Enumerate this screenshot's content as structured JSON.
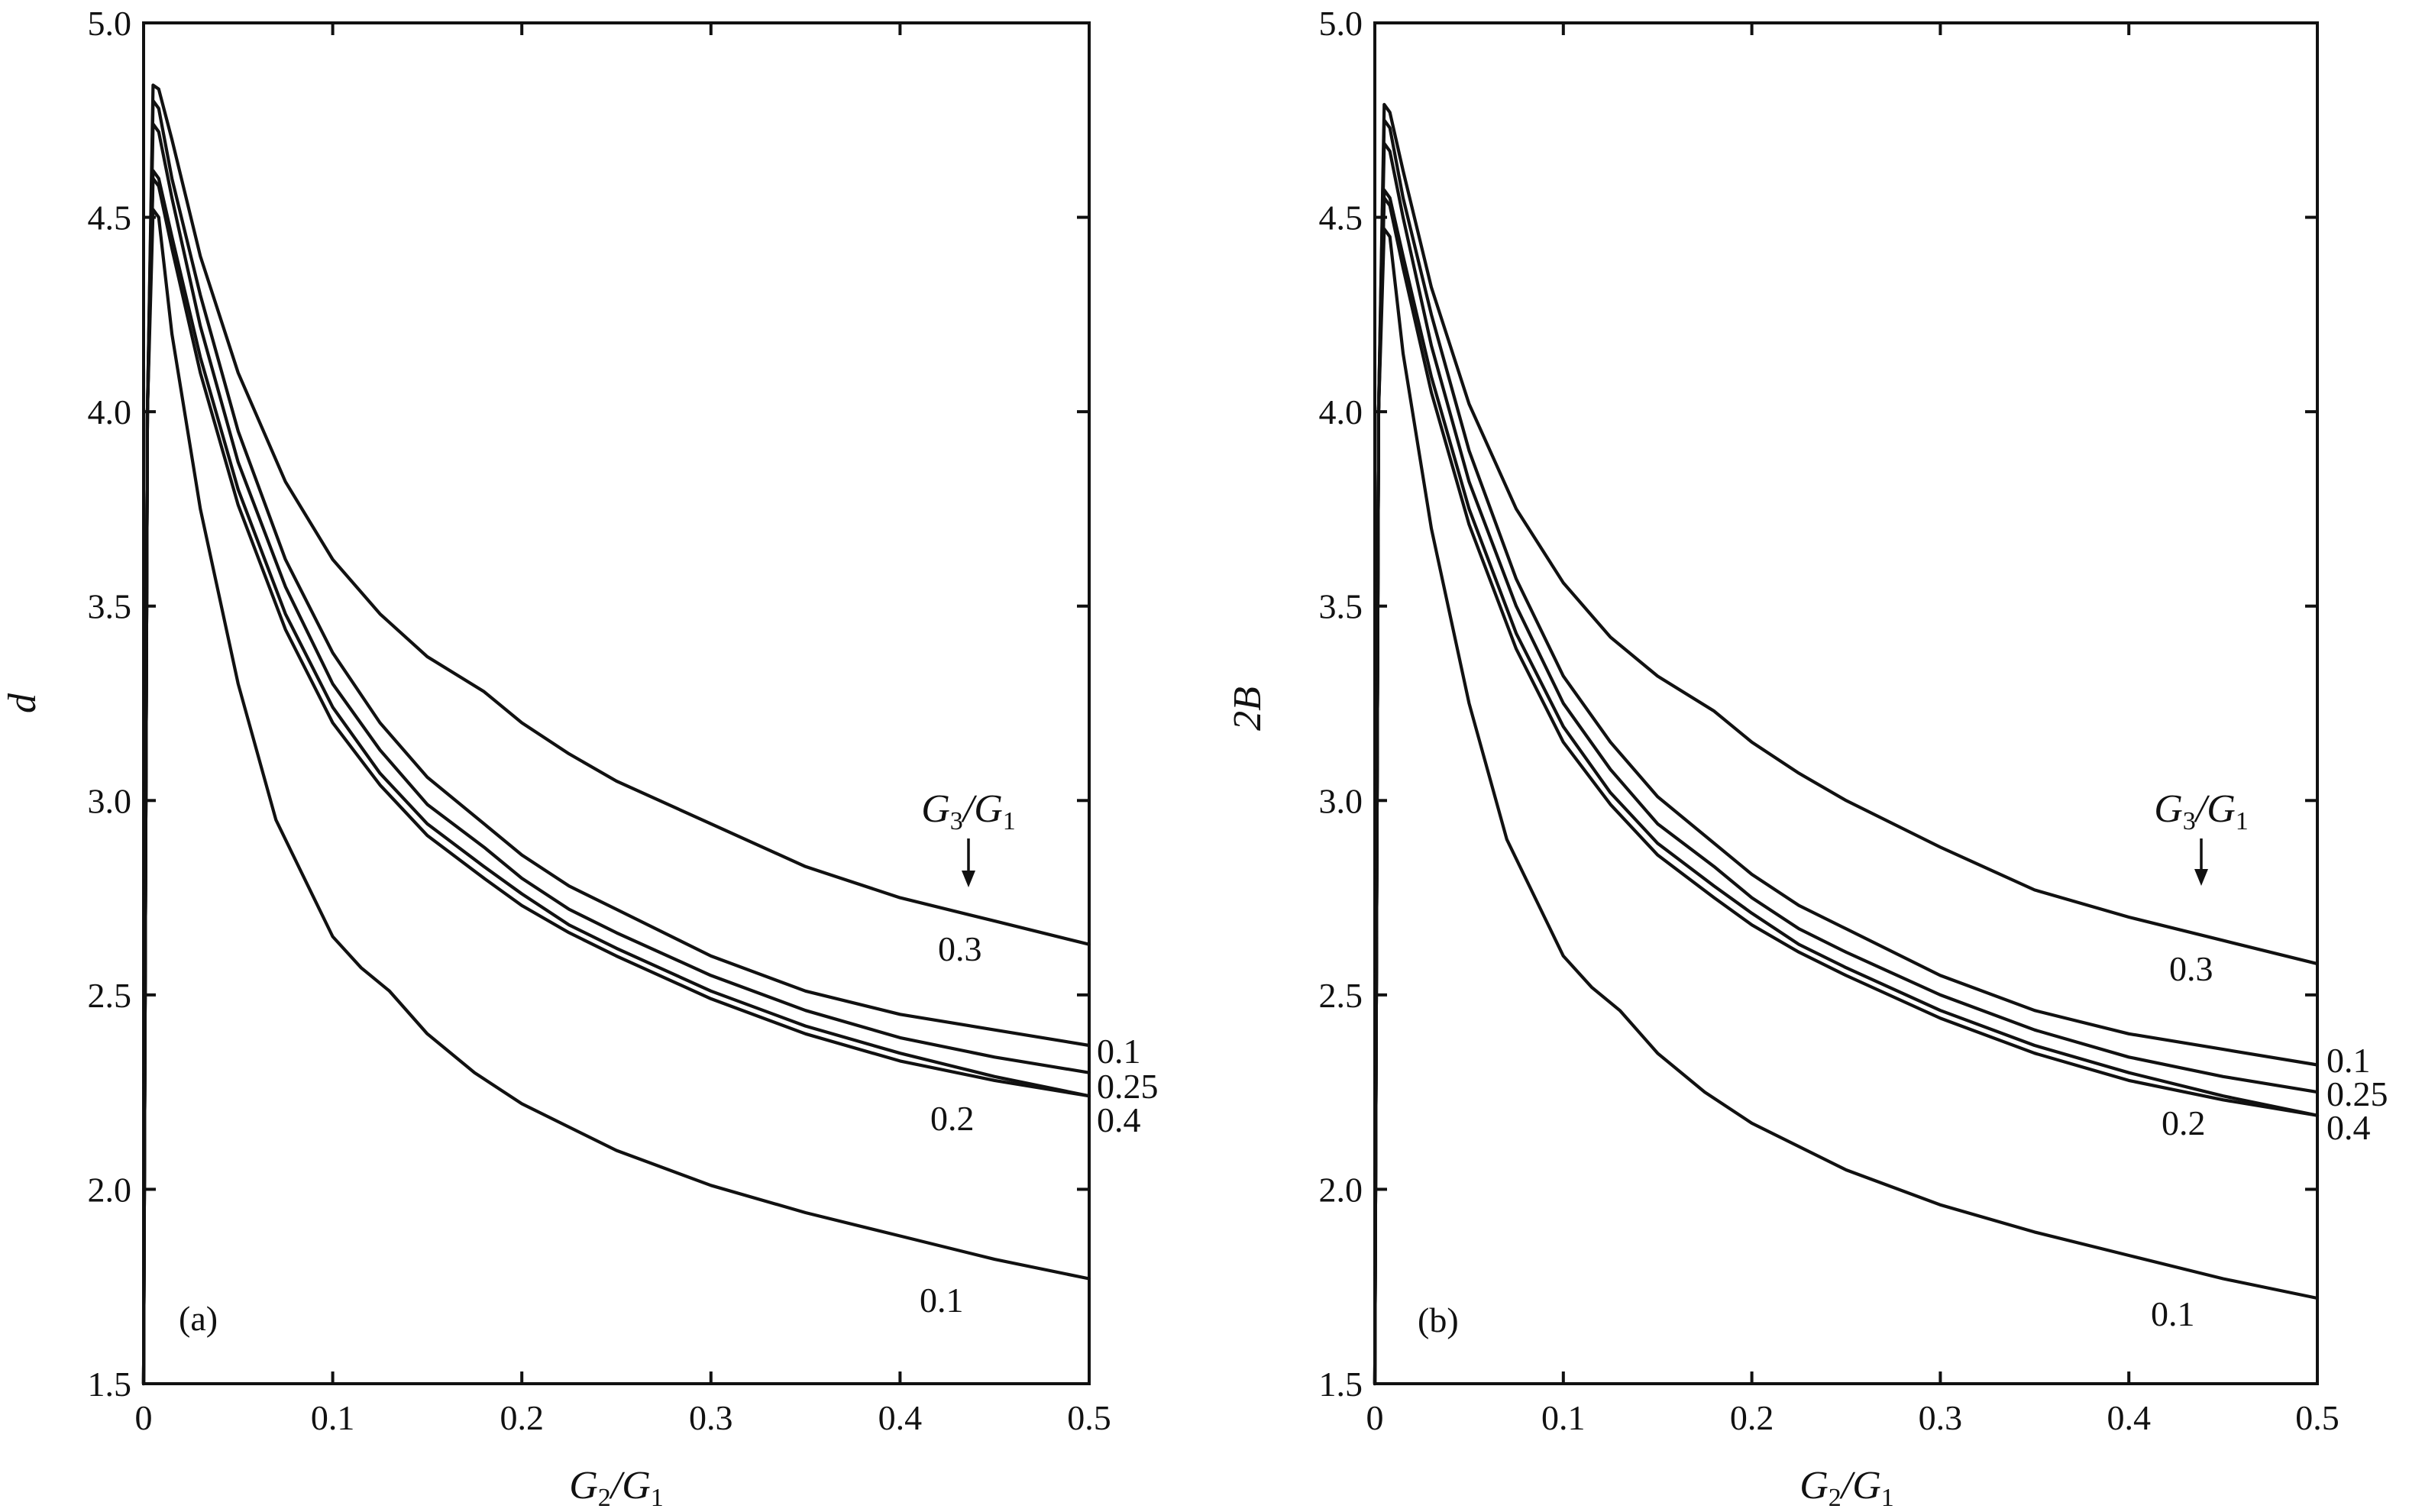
{
  "chart_data": [
    {
      "type": "line",
      "panel_tag": "(a)",
      "xlabel_main": "G",
      "xlabel_sub1": "2",
      "xlabel_sep": "/G",
      "xlabel_sub2": "1",
      "ylabel": "d",
      "xlim": [
        0,
        0.5
      ],
      "ylim": [
        1.5,
        5.0
      ],
      "xticks": [
        0,
        0.1,
        0.2,
        0.3,
        0.4,
        0.5
      ],
      "xtick_labels": [
        "0",
        "0.1",
        "0.2",
        "0.3",
        "0.4",
        "0.5"
      ],
      "yticks": [
        1.5,
        2.0,
        2.5,
        3.0,
        3.5,
        4.0,
        4.5,
        5.0
      ],
      "ytick_labels": [
        "1.5",
        "2.0",
        "2.5",
        "3.0",
        "3.5",
        "4.0",
        "4.5",
        "5.0"
      ],
      "legend_title_main": "G",
      "legend_title_sub1": "3",
      "legend_title_sep": "/G",
      "legend_title_sub2": "1",
      "series": [
        {
          "name": "0.3",
          "x": [
            0,
            0.002,
            0.005,
            0.008,
            0.015,
            0.03,
            0.05,
            0.075,
            0.1,
            0.125,
            0.15,
            0.18,
            0.2,
            0.225,
            0.25,
            0.3,
            0.35,
            0.4,
            0.45,
            0.5
          ],
          "values": [
            1.5,
            4.0,
            4.84,
            4.83,
            4.7,
            4.4,
            4.1,
            3.82,
            3.62,
            3.48,
            3.37,
            3.28,
            3.2,
            3.12,
            3.05,
            2.94,
            2.83,
            2.75,
            2.69,
            2.63
          ]
        },
        {
          "name": "0.1",
          "x": [
            0,
            0.002,
            0.005,
            0.008,
            0.015,
            0.03,
            0.05,
            0.075,
            0.1,
            0.125,
            0.15,
            0.18,
            0.2,
            0.225,
            0.25,
            0.3,
            0.35,
            0.4,
            0.45,
            0.5
          ],
          "values": [
            1.5,
            4.0,
            4.8,
            4.78,
            4.6,
            4.3,
            3.95,
            3.62,
            3.38,
            3.2,
            3.06,
            2.94,
            2.86,
            2.78,
            2.72,
            2.6,
            2.51,
            2.45,
            2.41,
            2.37
          ]
        },
        {
          "name": "0.25",
          "x": [
            0,
            0.002,
            0.005,
            0.008,
            0.015,
            0.03,
            0.05,
            0.075,
            0.1,
            0.125,
            0.15,
            0.18,
            0.2,
            0.225,
            0.25,
            0.3,
            0.35,
            0.4,
            0.45,
            0.5
          ],
          "values": [
            1.5,
            4.0,
            4.74,
            4.72,
            4.55,
            4.22,
            3.87,
            3.55,
            3.3,
            3.13,
            2.99,
            2.88,
            2.8,
            2.72,
            2.66,
            2.55,
            2.46,
            2.39,
            2.34,
            2.3
          ]
        },
        {
          "name": "0.4",
          "x": [
            0,
            0.002,
            0.005,
            0.008,
            0.015,
            0.03,
            0.05,
            0.075,
            0.1,
            0.125,
            0.15,
            0.18,
            0.2,
            0.225,
            0.25,
            0.3,
            0.35,
            0.4,
            0.45,
            0.5
          ],
          "values": [
            1.5,
            4.0,
            4.62,
            4.6,
            4.45,
            4.14,
            3.8,
            3.48,
            3.24,
            3.07,
            2.94,
            2.83,
            2.76,
            2.68,
            2.62,
            2.51,
            2.42,
            2.35,
            2.29,
            2.24
          ]
        },
        {
          "name": "0.2",
          "x": [
            0,
            0.002,
            0.005,
            0.008,
            0.015,
            0.03,
            0.05,
            0.075,
            0.1,
            0.125,
            0.15,
            0.18,
            0.2,
            0.225,
            0.25,
            0.3,
            0.35,
            0.4,
            0.45,
            0.5
          ],
          "values": [
            1.5,
            4.0,
            4.6,
            4.58,
            4.42,
            4.1,
            3.76,
            3.44,
            3.2,
            3.04,
            2.91,
            2.8,
            2.73,
            2.66,
            2.6,
            2.49,
            2.4,
            2.33,
            2.28,
            2.24
          ]
        },
        {
          "name": "0.1",
          "x": [
            0,
            0.002,
            0.005,
            0.008,
            0.015,
            0.03,
            0.05,
            0.07,
            0.09,
            0.1,
            0.115,
            0.13,
            0.15,
            0.175,
            0.2,
            0.25,
            0.3,
            0.35,
            0.4,
            0.45,
            0.5
          ],
          "values": [
            1.5,
            4.0,
            4.52,
            4.5,
            4.2,
            3.75,
            3.3,
            2.95,
            2.75,
            2.65,
            2.57,
            2.51,
            2.4,
            2.3,
            2.22,
            2.1,
            2.01,
            1.94,
            1.88,
            1.82,
            1.77
          ]
        }
      ],
      "curve_labels": [
        "0.3",
        "0.1",
        "0.25",
        "0.4",
        "0.2",
        "0.1"
      ]
    },
    {
      "type": "line",
      "panel_tag": "(b)",
      "xlabel_main": "G",
      "xlabel_sub1": "2",
      "xlabel_sep": "/G",
      "xlabel_sub2": "1",
      "ylabel": "2B",
      "xlim": [
        0,
        0.5
      ],
      "ylim": [
        1.5,
        5.0
      ],
      "xticks": [
        0,
        0.1,
        0.2,
        0.3,
        0.4,
        0.5
      ],
      "xtick_labels": [
        "0",
        "0.1",
        "0.2",
        "0.3",
        "0.4",
        "0.5"
      ],
      "yticks": [
        1.5,
        2.0,
        2.5,
        3.0,
        3.5,
        4.0,
        4.5,
        5.0
      ],
      "ytick_labels": [
        "1.5",
        "2.0",
        "2.5",
        "3.0",
        "3.5",
        "4.0",
        "4.5",
        "5.0"
      ],
      "legend_title_main": "G",
      "legend_title_sub1": "3",
      "legend_title_sep": "/G",
      "legend_title_sub2": "1",
      "series": [
        {
          "name": "0.3",
          "x": [
            0,
            0.002,
            0.005,
            0.008,
            0.015,
            0.03,
            0.05,
            0.075,
            0.1,
            0.125,
            0.15,
            0.18,
            0.2,
            0.225,
            0.25,
            0.3,
            0.35,
            0.4,
            0.45,
            0.5
          ],
          "values": [
            1.5,
            4.0,
            4.79,
            4.77,
            4.62,
            4.32,
            4.02,
            3.75,
            3.56,
            3.42,
            3.32,
            3.23,
            3.15,
            3.07,
            3.0,
            2.88,
            2.77,
            2.7,
            2.64,
            2.58
          ]
        },
        {
          "name": "0.1",
          "x": [
            0,
            0.002,
            0.005,
            0.008,
            0.015,
            0.03,
            0.05,
            0.075,
            0.1,
            0.125,
            0.15,
            0.18,
            0.2,
            0.225,
            0.25,
            0.3,
            0.35,
            0.4,
            0.45,
            0.5
          ],
          "values": [
            1.5,
            4.0,
            4.75,
            4.73,
            4.55,
            4.25,
            3.9,
            3.57,
            3.32,
            3.15,
            3.01,
            2.89,
            2.81,
            2.73,
            2.67,
            2.55,
            2.46,
            2.4,
            2.36,
            2.32
          ]
        },
        {
          "name": "0.25",
          "x": [
            0,
            0.002,
            0.005,
            0.008,
            0.015,
            0.03,
            0.05,
            0.075,
            0.1,
            0.125,
            0.15,
            0.18,
            0.2,
            0.225,
            0.25,
            0.3,
            0.35,
            0.4,
            0.45,
            0.5
          ],
          "values": [
            1.5,
            4.0,
            4.69,
            4.67,
            4.5,
            4.17,
            3.82,
            3.5,
            3.25,
            3.08,
            2.94,
            2.83,
            2.75,
            2.67,
            2.61,
            2.5,
            2.41,
            2.34,
            2.29,
            2.25
          ]
        },
        {
          "name": "0.4",
          "x": [
            0,
            0.002,
            0.005,
            0.008,
            0.015,
            0.03,
            0.05,
            0.075,
            0.1,
            0.125,
            0.15,
            0.18,
            0.2,
            0.225,
            0.25,
            0.3,
            0.35,
            0.4,
            0.45,
            0.5
          ],
          "values": [
            1.5,
            4.0,
            4.57,
            4.55,
            4.4,
            4.09,
            3.75,
            3.43,
            3.19,
            3.02,
            2.89,
            2.78,
            2.71,
            2.63,
            2.57,
            2.46,
            2.37,
            2.3,
            2.24,
            2.19
          ]
        },
        {
          "name": "0.2",
          "x": [
            0,
            0.002,
            0.005,
            0.008,
            0.015,
            0.03,
            0.05,
            0.075,
            0.1,
            0.125,
            0.15,
            0.18,
            0.2,
            0.225,
            0.25,
            0.3,
            0.35,
            0.4,
            0.45,
            0.5
          ],
          "values": [
            1.5,
            4.0,
            4.55,
            4.53,
            4.37,
            4.05,
            3.71,
            3.39,
            3.15,
            2.99,
            2.86,
            2.75,
            2.68,
            2.61,
            2.55,
            2.44,
            2.35,
            2.28,
            2.23,
            2.19
          ]
        },
        {
          "name": "0.1",
          "x": [
            0,
            0.002,
            0.005,
            0.008,
            0.015,
            0.03,
            0.05,
            0.07,
            0.09,
            0.1,
            0.115,
            0.13,
            0.15,
            0.175,
            0.2,
            0.25,
            0.3,
            0.35,
            0.4,
            0.45,
            0.5
          ],
          "values": [
            1.5,
            4.0,
            4.47,
            4.45,
            4.15,
            3.7,
            3.25,
            2.9,
            2.7,
            2.6,
            2.52,
            2.46,
            2.35,
            2.25,
            2.17,
            2.05,
            1.96,
            1.89,
            1.83,
            1.77,
            1.72
          ]
        }
      ],
      "curve_labels": [
        "0.3",
        "0.1",
        "0.25",
        "0.4",
        "0.2",
        "0.1"
      ]
    }
  ]
}
